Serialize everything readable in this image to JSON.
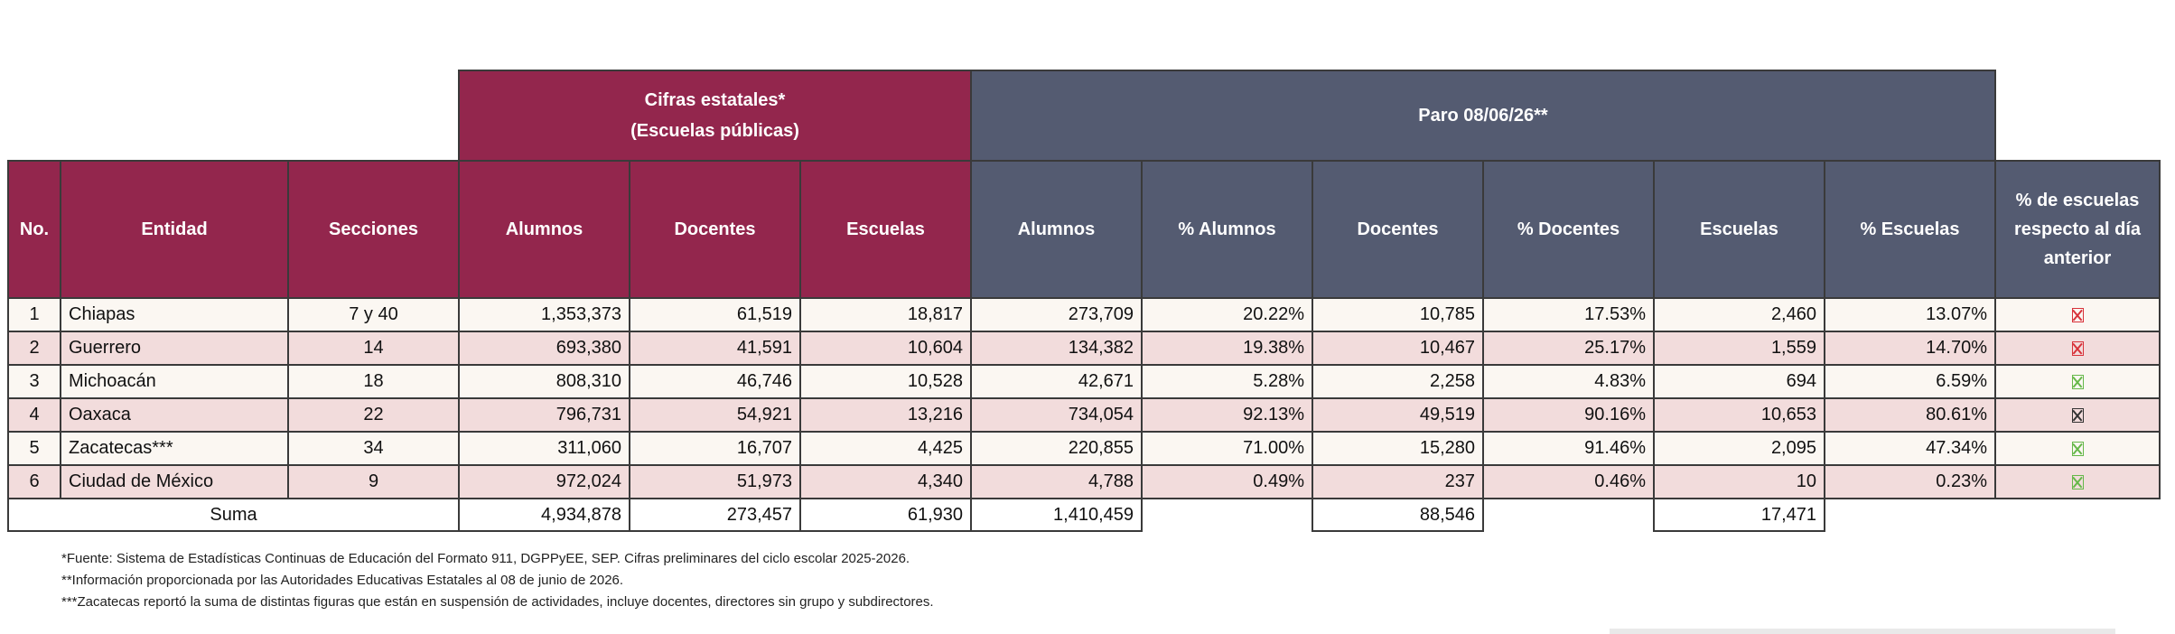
{
  "header": {
    "group_estatal_line1": "Cifras estatales*",
    "group_estatal_line2": "(Escuelas públicas)",
    "group_paro": "Paro 08/06/26**",
    "columns": [
      "No.",
      "Entidad",
      "Secciones",
      "Alumnos",
      "Docentes",
      "Escuelas",
      "Alumnos",
      "% Alumnos",
      "Docentes",
      "% Docentes",
      "Escuelas",
      "% Escuelas",
      "% de escuelas respecto al día anterior"
    ]
  },
  "rows": [
    {
      "no": "1",
      "entidad": "Chiapas",
      "secciones": "7 y 40",
      "alumnos": "1,353,373",
      "docentes": "61,519",
      "escuelas": "18,817",
      "p_alumnos": "273,709",
      "pct_alumnos": "20.22%",
      "p_docentes": "10,785",
      "pct_docentes": "17.53%",
      "p_escuelas": "2,460",
      "pct_escuelas": "13.07%",
      "trend": "down",
      "trend_color": "#d8323a"
    },
    {
      "no": "2",
      "entidad": "Guerrero",
      "secciones": "14",
      "alumnos": "693,380",
      "docentes": "41,591",
      "escuelas": "10,604",
      "p_alumnos": "134,382",
      "pct_alumnos": "19.38%",
      "p_docentes": "10,467",
      "pct_docentes": "25.17%",
      "p_escuelas": "1,559",
      "pct_escuelas": "14.70%",
      "trend": "down",
      "trend_color": "#d8323a"
    },
    {
      "no": "3",
      "entidad": "Michoacán",
      "secciones": "18",
      "alumnos": "808,310",
      "docentes": "46,746",
      "escuelas": "10,528",
      "p_alumnos": "42,671",
      "pct_alumnos": "5.28%",
      "p_docentes": "2,258",
      "pct_docentes": "4.83%",
      "p_escuelas": "694",
      "pct_escuelas": "6.59%",
      "trend": "up",
      "trend_color": "#66b84a"
    },
    {
      "no": "4",
      "entidad": "Oaxaca",
      "secciones": "22",
      "alumnos": "796,731",
      "docentes": "54,921",
      "escuelas": "13,216",
      "p_alumnos": "734,054",
      "pct_alumnos": "92.13%",
      "p_docentes": "49,519",
      "pct_docentes": "90.16%",
      "p_escuelas": "10,653",
      "pct_escuelas": "80.61%",
      "trend": "same",
      "trend_color": "#333333"
    },
    {
      "no": "5",
      "entidad": "Zacatecas***",
      "secciones": "34",
      "alumnos": "311,060",
      "docentes": "16,707",
      "escuelas": "4,425",
      "p_alumnos": "220,855",
      "pct_alumnos": "71.00%",
      "p_docentes": "15,280",
      "pct_docentes": "91.46%",
      "p_escuelas": "2,095",
      "pct_escuelas": "47.34%",
      "trend": "up",
      "trend_color": "#66b84a"
    },
    {
      "no": "6",
      "entidad": "Ciudad de México",
      "secciones": "9",
      "alumnos": "972,024",
      "docentes": "51,973",
      "escuelas": "4,340",
      "p_alumnos": "4,788",
      "pct_alumnos": "0.49%",
      "p_docentes": "237",
      "pct_docentes": "0.46%",
      "p_escuelas": "10",
      "pct_escuelas": "0.23%",
      "trend": "up",
      "trend_color": "#66b84a"
    }
  ],
  "totals": {
    "label": "Suma",
    "alumnos": "4,934,878",
    "docentes": "273,457",
    "escuelas": "61,930",
    "p_alumnos": "1,410,459",
    "p_docentes": "88,546",
    "p_escuelas": "17,471"
  },
  "notes": [
    "*Fuente: Sistema de Estadísticas Continuas de Educación del Formato 911, DGPPyEE, SEP. Cifras preliminares del ciclo escolar 2025-2026.",
    "**Información proporcionada por las Autoridades Educativas Estatales al 08 de junio de 2026.",
    "***Zacatecas reportó la suma de distintas figuras que están en suspensión de actividades, incluye docentes, directores sin grupo y subdirectores."
  ],
  "colors": {
    "maroon": "#93264d",
    "slate": "#545b71",
    "row_light": "#fbf7f2",
    "row_pink": "#f2dcdc"
  }
}
